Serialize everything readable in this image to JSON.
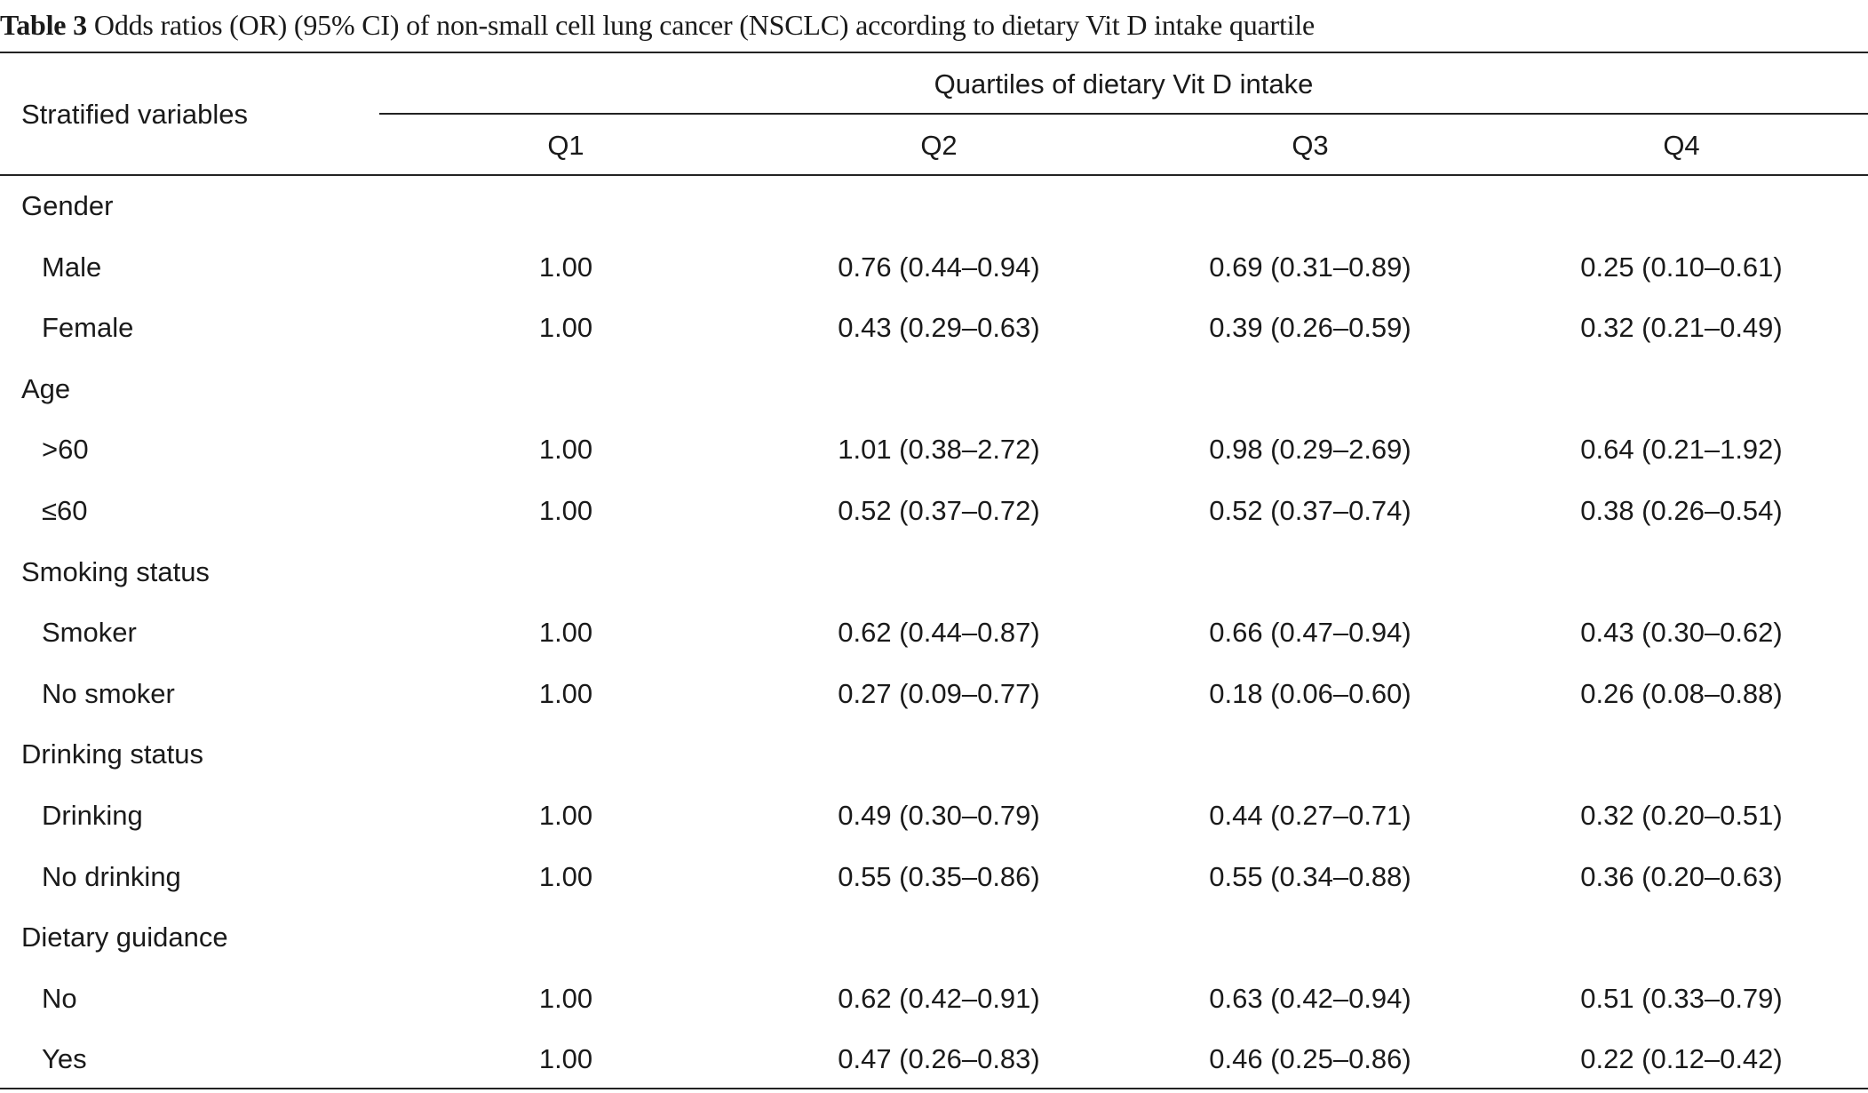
{
  "caption": {
    "label": "Table 3",
    "text": "Odds ratios (OR) (95% CI) of non-small cell lung cancer (NSCLC) according to dietary Vit D intake quartile"
  },
  "header": {
    "stub": "Stratified variables",
    "span": "Quartiles of dietary Vit D intake",
    "columns": [
      "Q1",
      "Q2",
      "Q3",
      "Q4"
    ]
  },
  "groups": [
    {
      "title": "Gender",
      "rows": [
        {
          "label": "Male",
          "values": [
            "1.00",
            "0.76 (0.44–0.94)",
            "0.69 (0.31–0.89)",
            "0.25 (0.10–0.61)"
          ]
        },
        {
          "label": "Female",
          "values": [
            "1.00",
            "0.43 (0.29–0.63)",
            "0.39 (0.26–0.59)",
            "0.32 (0.21–0.49)"
          ]
        }
      ]
    },
    {
      "title": "Age",
      "rows": [
        {
          "label": ">60",
          "values": [
            "1.00",
            "1.01 (0.38–2.72)",
            "0.98 (0.29–2.69)",
            "0.64 (0.21–1.92)"
          ]
        },
        {
          "label": "≤60",
          "values": [
            "1.00",
            "0.52 (0.37–0.72)",
            "0.52 (0.37–0.74)",
            "0.38 (0.26–0.54)"
          ]
        }
      ]
    },
    {
      "title": "Smoking status",
      "rows": [
        {
          "label": "Smoker",
          "values": [
            "1.00",
            "0.62 (0.44–0.87)",
            "0.66 (0.47–0.94)",
            "0.43 (0.30–0.62)"
          ]
        },
        {
          "label": "No smoker",
          "values": [
            "1.00",
            "0.27 (0.09–0.77)",
            "0.18 (0.06–0.60)",
            "0.26 (0.08–0.88)"
          ]
        }
      ]
    },
    {
      "title": "Drinking status",
      "rows": [
        {
          "label": "Drinking",
          "values": [
            "1.00",
            "0.49 (0.30–0.79)",
            "0.44 (0.27–0.71)",
            "0.32 (0.20–0.51)"
          ]
        },
        {
          "label": "No drinking",
          "values": [
            "1.00",
            "0.55 (0.35–0.86)",
            "0.55 (0.34–0.88)",
            "0.36 (0.20–0.63)"
          ]
        }
      ]
    },
    {
      "title": "Dietary guidance",
      "rows": [
        {
          "label": "No",
          "values": [
            "1.00",
            "0.62 (0.42–0.91)",
            "0.63 (0.42–0.94)",
            "0.51 (0.33–0.79)"
          ]
        },
        {
          "label": "Yes",
          "values": [
            "1.00",
            "0.47 (0.26–0.83)",
            "0.46 (0.25–0.86)",
            "0.22 (0.12–0.42)"
          ]
        }
      ]
    }
  ]
}
